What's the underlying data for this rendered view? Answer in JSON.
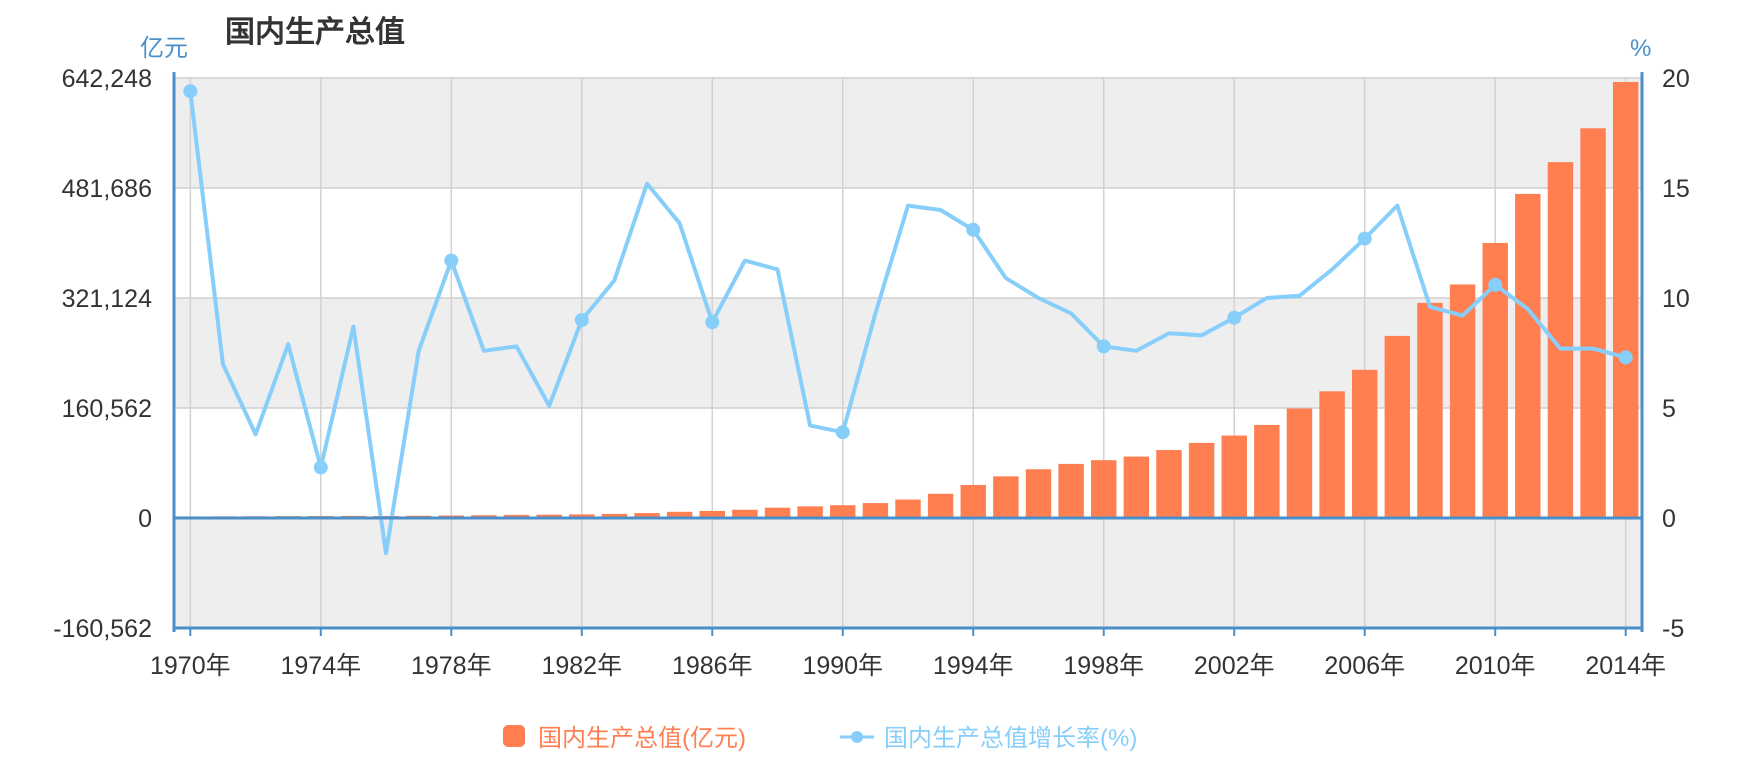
{
  "chart_data": {
    "type": "bar+line",
    "title": "国内生产总值",
    "y_left_unit": "亿元",
    "y_right_unit": "%",
    "y_left_ticks": [
      "642,248",
      "481,686",
      "321,124",
      "160,562",
      "0",
      "-160,562"
    ],
    "y_left_tick_values": [
      642248,
      481686,
      321124,
      160562,
      0,
      -160562
    ],
    "y_left_range": [
      -160562,
      642248
    ],
    "y_right_ticks": [
      "20",
      "15",
      "10",
      "5",
      "0",
      "-5"
    ],
    "y_right_tick_values": [
      20,
      15,
      10,
      5,
      0,
      -5
    ],
    "y_right_range": [
      -5,
      20
    ],
    "x_tick_labels": [
      "1970年",
      "1974年",
      "1978年",
      "1982年",
      "1986年",
      "1990年",
      "1994年",
      "1998年",
      "2002年",
      "2006年",
      "2010年",
      "2014年"
    ],
    "years": [
      1970,
      1971,
      1972,
      1973,
      1974,
      1975,
      1976,
      1977,
      1978,
      1979,
      1980,
      1981,
      1982,
      1983,
      1984,
      1985,
      1986,
      1987,
      1988,
      1989,
      1990,
      1991,
      1992,
      1993,
      1994,
      1995,
      1996,
      1997,
      1998,
      1999,
      2000,
      2001,
      2002,
      2003,
      2004,
      2005,
      2006,
      2007,
      2008,
      2009,
      2010,
      2011,
      2012,
      2013,
      2014
    ],
    "series": [
      {
        "name": "国内生产总值(亿元)",
        "kind": "bar",
        "axis": "left",
        "color": "#ff7f50",
        "values": [
          2261,
          2435,
          2530,
          2733,
          2803,
          3013,
          2961,
          3221,
          3645,
          4063,
          4546,
          4892,
          5323,
          5963,
          7208,
          9016,
          10275,
          12059,
          15043,
          16992,
          18668,
          21782,
          26924,
          35334,
          48198,
          60794,
          71177,
          78973,
          84402,
          89677,
          99215,
          109655,
          120333,
          135823,
          159878,
          184937,
          216314,
          265810,
          314045,
          340903,
          401513,
          473104,
          519470,
          568845,
          636463
        ]
      },
      {
        "name": "国内生产总值增长率(%)",
        "kind": "line",
        "axis": "right",
        "color": "#87cefa",
        "values": [
          19.4,
          7.0,
          3.8,
          7.9,
          2.3,
          8.7,
          -1.6,
          7.6,
          11.7,
          7.6,
          7.8,
          5.1,
          9.0,
          10.8,
          15.2,
          13.4,
          8.9,
          11.7,
          11.3,
          4.2,
          3.9,
          9.3,
          14.2,
          14.0,
          13.1,
          10.9,
          10.0,
          9.3,
          7.8,
          7.6,
          8.4,
          8.3,
          9.1,
          10.0,
          10.1,
          11.3,
          12.7,
          14.2,
          9.6,
          9.2,
          10.6,
          9.5,
          7.7,
          7.7,
          7.3
        ],
        "markers_at": [
          1970,
          1974,
          1978,
          1982,
          1986,
          1990,
          1994,
          1998,
          2002,
          2006,
          2010,
          2014
        ]
      }
    ],
    "legend_position": "bottom-center",
    "grid": true,
    "background_bands": [
      "#eeeeee",
      "#ffffff"
    ]
  }
}
